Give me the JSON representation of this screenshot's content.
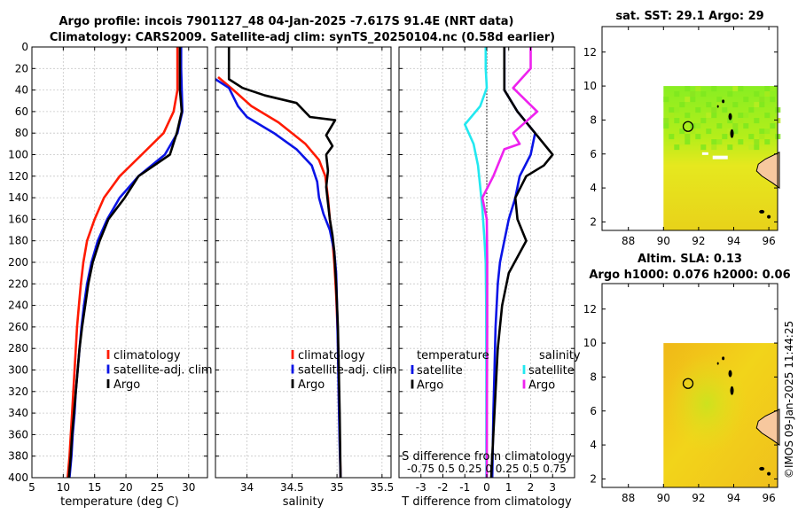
{
  "header": {
    "line1": "Argo profile: incois 7901127_48 04-Jan-2025 -7.617S 91.4E (NRT data)",
    "line2": "Climatology: CARS2009. Satellite-adj clim: synTS_20250104.nc (0.58d earlier)"
  },
  "credit": "©IMOS 09-Jan-2025 11:44:25",
  "colors": {
    "climatology": "#ff1a00",
    "satellite": "#0a14e6",
    "argo": "#000000",
    "s_satellite": "#22e8f0",
    "s_argo": "#ee22ee",
    "grid": "#c8c8c8"
  },
  "depth_ticks": [
    0,
    20,
    40,
    60,
    80,
    100,
    120,
    140,
    160,
    180,
    200,
    220,
    240,
    260,
    280,
    300,
    320,
    340,
    360,
    380,
    400
  ],
  "chart_data": [
    {
      "id": "temperature",
      "type": "line",
      "xlabel": "temperature (deg C)",
      "ylabel": "depth (m)",
      "xlim": [
        5,
        33
      ],
      "ylim": [
        0,
        400
      ],
      "xticks": [
        5,
        10,
        15,
        20,
        25,
        30
      ],
      "legend": [
        "climatology",
        "satellite-adj. clim",
        "Argo"
      ],
      "series": [
        {
          "name": "climatology",
          "color": "#ff1a00",
          "points": [
            [
              28.2,
              0
            ],
            [
              28.2,
              20
            ],
            [
              28.2,
              40
            ],
            [
              27.6,
              60
            ],
            [
              26.0,
              80
            ],
            [
              22.5,
              100
            ],
            [
              19.0,
              120
            ],
            [
              16.5,
              140
            ],
            [
              15.0,
              160
            ],
            [
              13.8,
              180
            ],
            [
              13.2,
              200
            ],
            [
              12.8,
              220
            ],
            [
              12.5,
              240
            ],
            [
              12.2,
              260
            ],
            [
              12.0,
              280
            ],
            [
              11.8,
              300
            ],
            [
              11.6,
              320
            ],
            [
              11.4,
              340
            ],
            [
              11.2,
              360
            ],
            [
              11.0,
              380
            ],
            [
              10.7,
              400
            ]
          ]
        },
        {
          "name": "satellite-adj. clim",
          "color": "#0a14e6",
          "points": [
            [
              28.8,
              0
            ],
            [
              28.8,
              20
            ],
            [
              28.9,
              40
            ],
            [
              29.0,
              60
            ],
            [
              28.2,
              80
            ],
            [
              26.2,
              100
            ],
            [
              22.0,
              120
            ],
            [
              19.0,
              140
            ],
            [
              17.0,
              160
            ],
            [
              15.5,
              180
            ],
            [
              14.5,
              200
            ],
            [
              13.8,
              220
            ],
            [
              13.3,
              240
            ],
            [
              12.9,
              260
            ],
            [
              12.6,
              280
            ],
            [
              12.3,
              300
            ],
            [
              12.0,
              320
            ],
            [
              11.8,
              340
            ],
            [
              11.5,
              360
            ],
            [
              11.3,
              380
            ],
            [
              11.0,
              400
            ]
          ]
        },
        {
          "name": "Argo",
          "color": "#000000",
          "points": [
            [
              28.6,
              0
            ],
            [
              28.6,
              20
            ],
            [
              28.6,
              40
            ],
            [
              28.9,
              60
            ],
            [
              28.1,
              80
            ],
            [
              27.0,
              100
            ],
            [
              22.0,
              120
            ],
            [
              19.8,
              140
            ],
            [
              17.2,
              160
            ],
            [
              15.8,
              180
            ],
            [
              14.7,
              200
            ],
            [
              14.0,
              220
            ],
            [
              13.5,
              240
            ],
            [
              13.0,
              260
            ],
            [
              12.6,
              280
            ],
            [
              12.3,
              300
            ],
            [
              12.0,
              320
            ],
            [
              11.7,
              340
            ],
            [
              11.4,
              360
            ],
            [
              11.2,
              380
            ],
            [
              10.9,
              400
            ]
          ]
        }
      ]
    },
    {
      "id": "salinity",
      "type": "line",
      "xlabel": "salinity",
      "xlim": [
        33.65,
        35.6
      ],
      "ylim": [
        0,
        400
      ],
      "xticks": [
        34,
        34.5,
        35,
        35.5
      ],
      "legend": [
        "climatology",
        "satellite-adj. clim",
        "Argo"
      ],
      "series": [
        {
          "name": "climatology",
          "color": "#ff1a00",
          "points": [
            [
              33.68,
              28
            ],
            [
              33.85,
              40
            ],
            [
              34.05,
              55
            ],
            [
              34.35,
              70
            ],
            [
              34.65,
              90
            ],
            [
              34.8,
              105
            ],
            [
              34.87,
              120
            ],
            [
              34.9,
              140
            ],
            [
              34.92,
              160
            ],
            [
              34.95,
              180
            ],
            [
              34.97,
              200
            ],
            [
              34.99,
              230
            ],
            [
              35.01,
              270
            ],
            [
              35.02,
              320
            ],
            [
              35.03,
              360
            ],
            [
              35.04,
              400
            ]
          ]
        },
        {
          "name": "satellite-adj. clim",
          "color": "#0a14e6",
          "points": [
            [
              33.65,
              30
            ],
            [
              33.8,
              38
            ],
            [
              33.9,
              55
            ],
            [
              34.0,
              65
            ],
            [
              34.3,
              80
            ],
            [
              34.55,
              95
            ],
            [
              34.72,
              110
            ],
            [
              34.78,
              125
            ],
            [
              34.8,
              140
            ],
            [
              34.85,
              155
            ],
            [
              34.92,
              170
            ],
            [
              34.97,
              190
            ],
            [
              34.99,
              210
            ],
            [
              35.0,
              240
            ],
            [
              35.01,
              280
            ],
            [
              35.02,
              330
            ],
            [
              35.03,
              370
            ],
            [
              35.04,
              400
            ]
          ]
        },
        {
          "name": "Argo",
          "color": "#000000",
          "points": [
            [
              33.8,
              0
            ],
            [
              33.8,
              20
            ],
            [
              33.8,
              30
            ],
            [
              33.95,
              38
            ],
            [
              34.2,
              45
            ],
            [
              34.55,
              52
            ],
            [
              34.7,
              65
            ],
            [
              34.98,
              68
            ],
            [
              34.88,
              82
            ],
            [
              34.95,
              92
            ],
            [
              34.88,
              100
            ],
            [
              34.9,
              115
            ],
            [
              34.88,
              130
            ],
            [
              34.9,
              145
            ],
            [
              34.92,
              160
            ],
            [
              34.95,
              175
            ],
            [
              34.97,
              190
            ],
            [
              34.99,
              220
            ],
            [
              35.01,
              260
            ],
            [
              35.02,
              300
            ],
            [
              35.03,
              340
            ],
            [
              35.04,
              400
            ]
          ]
        }
      ]
    },
    {
      "id": "difference",
      "type": "line",
      "xlabel": "T difference from climatology",
      "xlim": [
        -4,
        4
      ],
      "ylim": [
        0,
        400
      ],
      "xticks": [
        -3,
        -2,
        -1,
        0,
        1,
        2,
        3
      ],
      "s_axis_label": "S difference from climatology",
      "s_ticks": "-0.75 0.5 0.25 0 0.25 0.5 0.75",
      "legend_temperature_title": "temperature",
      "legend_salinity_title": "salinity",
      "legend_temperature": [
        "satellite",
        "Argo"
      ],
      "legend_salinity": [
        "satellite",
        "Argo"
      ],
      "series": [
        {
          "name": "temperature satellite",
          "color": "#0a14e6",
          "points": [
            [
              0.8,
              0
            ],
            [
              0.8,
              20
            ],
            [
              0.8,
              40
            ],
            [
              1.4,
              60
            ],
            [
              2.2,
              80
            ],
            [
              2.0,
              100
            ],
            [
              1.5,
              120
            ],
            [
              1.3,
              140
            ],
            [
              1.0,
              160
            ],
            [
              0.8,
              180
            ],
            [
              0.6,
              200
            ],
            [
              0.5,
              220
            ],
            [
              0.4,
              260
            ],
            [
              0.35,
              300
            ],
            [
              0.3,
              340
            ],
            [
              0.25,
              400
            ]
          ]
        },
        {
          "name": "temperature Argo",
          "color": "#000000",
          "points": [
            [
              0.8,
              0
            ],
            [
              0.8,
              20
            ],
            [
              0.8,
              40
            ],
            [
              1.4,
              60
            ],
            [
              2.2,
              80
            ],
            [
              3.0,
              100
            ],
            [
              2.6,
              110
            ],
            [
              1.8,
              120
            ],
            [
              1.3,
              140
            ],
            [
              1.4,
              160
            ],
            [
              1.8,
              180
            ],
            [
              1.0,
              210
            ],
            [
              0.7,
              240
            ],
            [
              0.5,
              280
            ],
            [
              0.4,
              320
            ],
            [
              0.3,
              360
            ],
            [
              0.2,
              400
            ]
          ]
        },
        {
          "name": "salinity satellite",
          "color": "#22e8f0",
          "points": [
            [
              -0.05,
              0
            ],
            [
              -0.05,
              20
            ],
            [
              0.0,
              38
            ],
            [
              -0.3,
              55
            ],
            [
              -1.0,
              72
            ],
            [
              -0.6,
              90
            ],
            [
              -0.4,
              110
            ],
            [
              -0.3,
              130
            ],
            [
              -0.2,
              150
            ],
            [
              -0.1,
              180
            ],
            [
              -0.05,
              200
            ],
            [
              -0.03,
              240
            ],
            [
              -0.02,
              300
            ],
            [
              -0.02,
              400
            ]
          ]
        },
        {
          "name": "salinity Argo",
          "color": "#ee22ee",
          "points": [
            [
              2.0,
              0
            ],
            [
              2.0,
              20
            ],
            [
              1.2,
              38
            ],
            [
              2.3,
              60
            ],
            [
              1.2,
              80
            ],
            [
              1.5,
              90
            ],
            [
              0.8,
              95
            ],
            [
              0.3,
              120
            ],
            [
              -0.2,
              140
            ],
            [
              0.0,
              160
            ],
            [
              0.02,
              200
            ],
            [
              0.02,
              260
            ],
            [
              0.01,
              320
            ],
            [
              0.0,
              400
            ]
          ]
        }
      ]
    }
  ],
  "maps": {
    "sst": {
      "title": "sat. SST: 29.1 Argo: 29",
      "xticks": [
        88,
        90,
        92,
        94,
        96
      ],
      "yticks": [
        2,
        4,
        6,
        8,
        10,
        12
      ],
      "xlim": [
        86.5,
        96.5
      ],
      "ylim": [
        1.5,
        13.5
      ],
      "float_lon": 91.4,
      "float_lat": 7.617
    },
    "sla": {
      "title1": "Altim. SLA: 0.13",
      "title2": "Argo h1000: 0.076 h2000: 0.06",
      "xticks": [
        88,
        90,
        92,
        94,
        96
      ],
      "yticks": [
        2,
        4,
        6,
        8,
        10,
        12
      ],
      "xlim": [
        86.5,
        96.5
      ],
      "ylim": [
        1.5,
        13.5
      ],
      "float_lon": 91.4,
      "float_lat": 7.617
    }
  }
}
